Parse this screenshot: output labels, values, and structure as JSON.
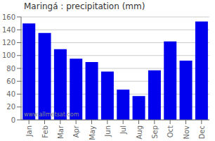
{
  "chart_data": {
    "type": "bar",
    "title": "Maringá : precipitation (mm)",
    "categories": [
      "Jan",
      "Feb",
      "Mar",
      "Apr",
      "May",
      "Jun",
      "Jul",
      "Aug",
      "Sep",
      "Oct",
      "Nov",
      "Dec"
    ],
    "values": [
      150,
      135,
      110,
      95,
      90,
      75,
      47,
      37,
      77,
      122,
      92,
      153
    ],
    "color": "#0000ee",
    "ylim": [
      0,
      160
    ],
    "yticks": [
      0,
      20,
      40,
      60,
      80,
      100,
      120,
      140,
      160
    ],
    "grid": true,
    "annotations": [
      "www.allmetsat.com"
    ]
  }
}
